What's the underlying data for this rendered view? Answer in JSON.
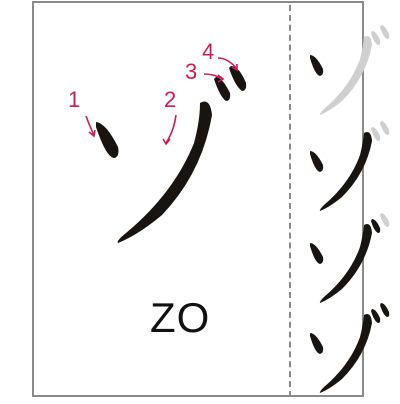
{
  "character": {
    "romaji": "ZO",
    "stroke_count": 4,
    "stroke_labels": [
      "1",
      "2",
      "3",
      "4"
    ]
  },
  "steps": [
    {
      "completed_strokes": 1
    },
    {
      "completed_strokes": 2
    },
    {
      "completed_strokes": 3
    },
    {
      "completed_strokes": 4
    }
  ],
  "colors": {
    "ink": "#1a1410",
    "ghost": "#cfcfcf",
    "annotation": "#d0185a",
    "frame": "#8a8a8a"
  }
}
